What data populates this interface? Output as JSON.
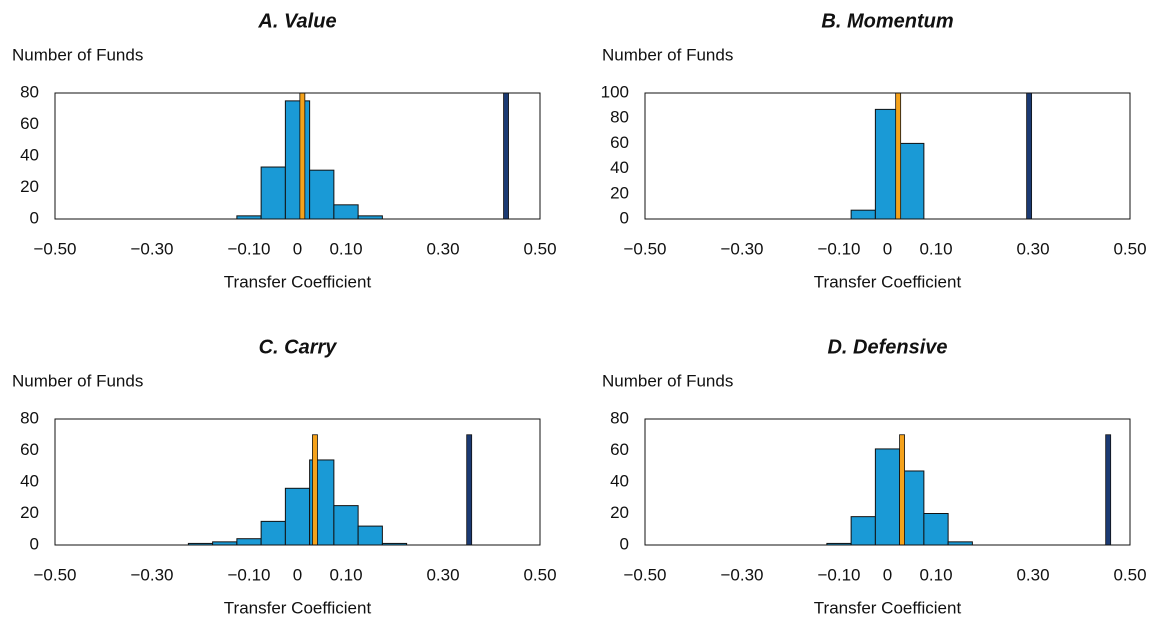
{
  "chart_data": [
    {
      "type": "histogram",
      "title": "A. Value",
      "ylabel": "Number of Funds",
      "xlabel": "Transfer Coefficient",
      "color": "#1a9ad6",
      "bins": [
        -0.125,
        -0.075,
        -0.025,
        0.025,
        0.075,
        0.125,
        0.175
      ],
      "counts": [
        2,
        33,
        75,
        31,
        9,
        2
      ],
      "reference_bars": [
        {
          "x": 0.01,
          "height": 80,
          "color": "#f5a21b"
        },
        {
          "x": 0.43,
          "height": 80,
          "color": "#1b3a73"
        }
      ],
      "xlim": [
        -0.5,
        0.5
      ],
      "ylim": [
        0,
        80
      ],
      "xticks": [
        {
          "value": -0.5,
          "label": "−0.50"
        },
        {
          "value": -0.3,
          "label": "−0.30"
        },
        {
          "value": -0.1,
          "label": "−0.10"
        },
        0,
        {
          "value": 0.1,
          "label": "0.10"
        },
        {
          "value": 0.3,
          "label": "0.30"
        },
        {
          "value": 0.5,
          "label": "0.50"
        }
      ],
      "yticks": [
        0,
        20,
        40,
        60,
        80
      ]
    },
    {
      "type": "histogram",
      "title": "B. Momentum",
      "ylabel": "Number of Funds",
      "xlabel": "Transfer Coefficient",
      "color": "#1a9ad6",
      "bins": [
        -0.075,
        -0.025,
        0.025,
        0.075
      ],
      "counts": [
        7,
        87,
        60
      ],
      "reference_bars": [
        {
          "x": 0.022,
          "height": 100,
          "color": "#f5a21b"
        },
        {
          "x": 0.292,
          "height": 100,
          "color": "#1b3a73"
        }
      ],
      "xlim": [
        -0.5,
        0.5
      ],
      "ylim": [
        0,
        100
      ],
      "xticks": [
        {
          "value": -0.5,
          "label": "−0.50"
        },
        {
          "value": -0.3,
          "label": "−0.30"
        },
        {
          "value": -0.1,
          "label": "−0.10"
        },
        0,
        {
          "value": 0.1,
          "label": "0.10"
        },
        {
          "value": 0.3,
          "label": "0.30"
        },
        {
          "value": 0.5,
          "label": "0.50"
        }
      ],
      "yticks": [
        0,
        20,
        40,
        60,
        80,
        100
      ]
    },
    {
      "type": "histogram",
      "title": "C. Carry",
      "ylabel": "Number of Funds",
      "xlabel": "Transfer Coefficient",
      "color": "#1a9ad6",
      "bins": [
        -0.225,
        -0.175,
        -0.125,
        -0.075,
        -0.025,
        0.025,
        0.075,
        0.125,
        0.175,
        0.225
      ],
      "counts": [
        1,
        2,
        4,
        15,
        36,
        54,
        25,
        12,
        1
      ],
      "reference_bars": [
        {
          "x": 0.036,
          "height": 70,
          "color": "#f5a21b"
        },
        {
          "x": 0.354,
          "height": 70,
          "color": "#1b3a73"
        }
      ],
      "xlim": [
        -0.5,
        0.5
      ],
      "ylim": [
        0,
        80
      ],
      "xticks": [
        {
          "value": -0.5,
          "label": "−0.50"
        },
        {
          "value": -0.3,
          "label": "−0.30"
        },
        {
          "value": -0.1,
          "label": "−0.10"
        },
        0,
        {
          "value": 0.1,
          "label": "0.10"
        },
        {
          "value": 0.3,
          "label": "0.30"
        },
        {
          "value": 0.5,
          "label": "0.50"
        }
      ],
      "yticks": [
        0,
        20,
        40,
        60,
        80
      ]
    },
    {
      "type": "histogram",
      "title": "D. Defensive",
      "ylabel": "Number of Funds",
      "xlabel": "Transfer Coefficient",
      "color": "#1a9ad6",
      "bins": [
        -0.125,
        -0.075,
        -0.025,
        0.025,
        0.075,
        0.125,
        0.175
      ],
      "counts": [
        1,
        18,
        61,
        47,
        20,
        2
      ],
      "reference_bars": [
        {
          "x": 0.03,
          "height": 70,
          "color": "#f5a21b"
        },
        {
          "x": 0.455,
          "height": 70,
          "color": "#1b3a73"
        }
      ],
      "xlim": [
        -0.5,
        0.5
      ],
      "ylim": [
        0,
        80
      ],
      "xticks": [
        {
          "value": -0.5,
          "label": "−0.50"
        },
        {
          "value": -0.3,
          "label": "−0.30"
        },
        {
          "value": -0.1,
          "label": "−0.10"
        },
        0,
        {
          "value": 0.1,
          "label": "0.10"
        },
        {
          "value": 0.3,
          "label": "0.30"
        },
        {
          "value": 0.5,
          "label": "0.50"
        }
      ],
      "yticks": [
        0,
        20,
        40,
        60,
        80
      ]
    }
  ]
}
